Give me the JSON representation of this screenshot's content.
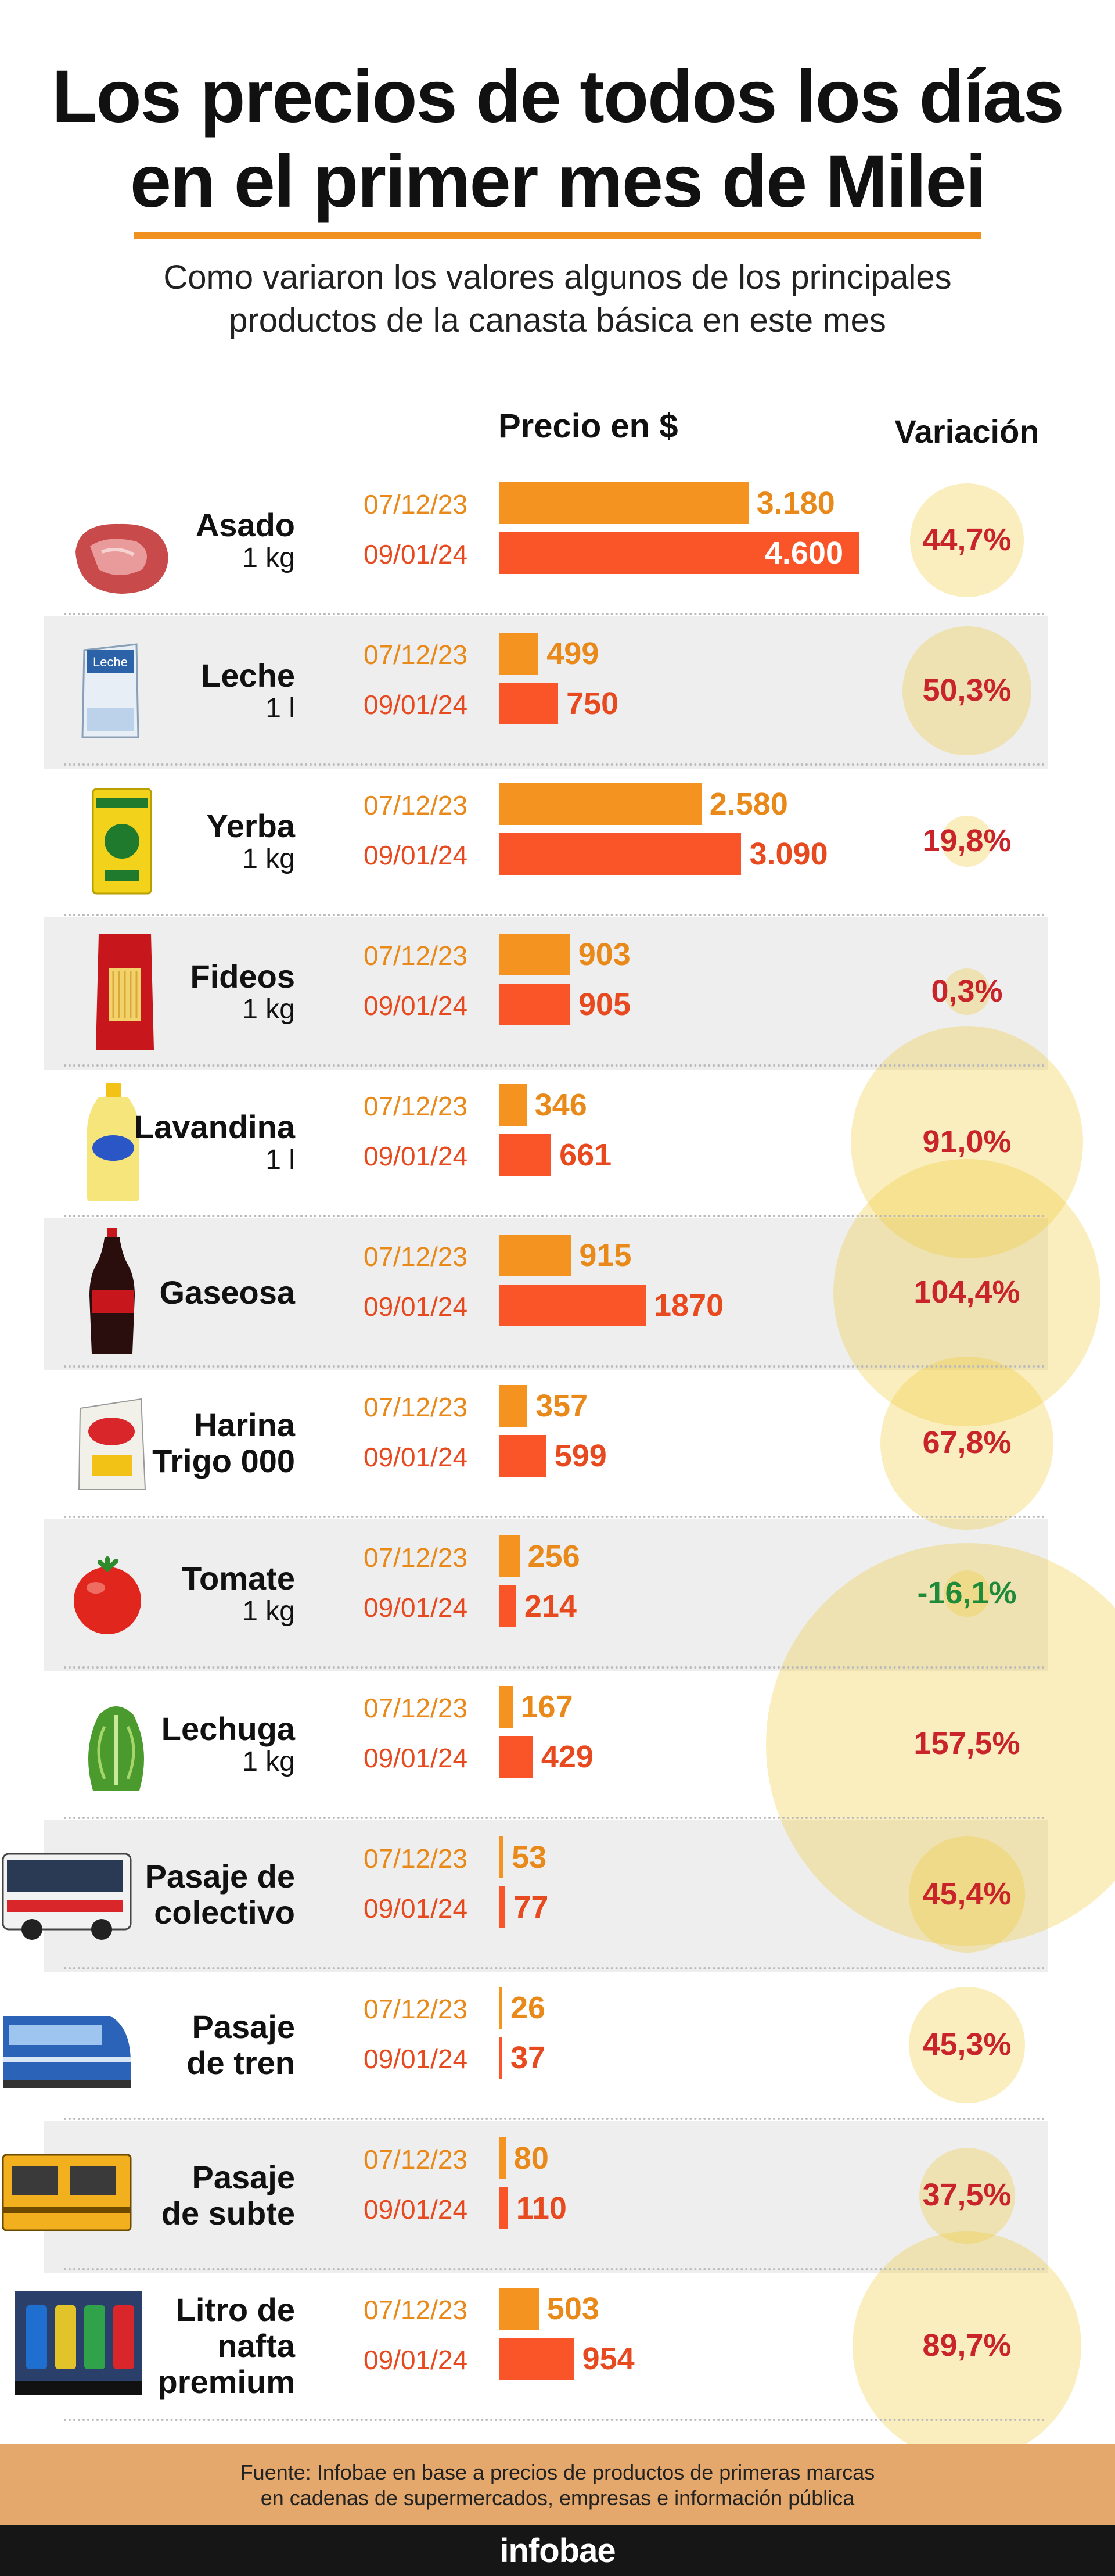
{
  "header": {
    "title_line1": "Los precios de todos los días",
    "title_line2": "en el primer mes de Milei",
    "subtitle_line1": "Como variaron los valores algunos de los principales",
    "subtitle_line2": "productos de la canasta básica en este mes"
  },
  "colors": {
    "bar_before": "#f59320",
    "bar_after": "#fa5528",
    "variation_positive": "#c8242a",
    "variation_negative": "#1f8a3a",
    "bubble": "#f0c828"
  },
  "chart_data": {
    "type": "bar",
    "title": "Los precios de todos los días en el primer mes de Milei",
    "price_header": "Precio en $",
    "variation_header": "Variación",
    "bar_unit_max": 4600,
    "series_names": [
      "07/12/23",
      "09/01/24"
    ],
    "items": [
      {
        "name": "Asado",
        "unit": "1 kg",
        "icon": "asado-icon",
        "date_a": "07/12/23",
        "date_b": "09/01/24",
        "value_a": 3180,
        "value_b": 4600,
        "label_a": "3.180",
        "label_b": "4.600",
        "variation": "44,7%",
        "variation_value": 44.7
      },
      {
        "name": "Leche",
        "unit": "1 l",
        "icon": "leche-icon",
        "date_a": "07/12/23",
        "date_b": "09/01/24",
        "value_a": 499,
        "value_b": 750,
        "label_a": "499",
        "label_b": "750",
        "variation": "50,3%",
        "variation_value": 50.3
      },
      {
        "name": "Yerba",
        "unit": "1 kg",
        "icon": "yerba-icon",
        "date_a": "07/12/23",
        "date_b": "09/01/24",
        "value_a": 2580,
        "value_b": 3090,
        "label_a": "2.580",
        "label_b": "3.090",
        "variation": "19,8%",
        "variation_value": 19.8
      },
      {
        "name": "Fideos",
        "unit": "1 kg",
        "icon": "fideos-icon",
        "date_a": "07/12/23",
        "date_b": "09/01/24",
        "value_a": 903,
        "value_b": 905,
        "label_a": "903",
        "label_b": "905",
        "variation": "0,3%",
        "variation_value": 0.3
      },
      {
        "name": "Lavandina",
        "unit": "1 l",
        "icon": "lavandina-icon",
        "date_a": "07/12/23",
        "date_b": "09/01/24",
        "value_a": 346,
        "value_b": 661,
        "label_a": "346",
        "label_b": "661",
        "variation": "91,0%",
        "variation_value": 91.0
      },
      {
        "name": "Gaseosa",
        "unit": "",
        "icon": "gaseosa-icon",
        "date_a": "07/12/23",
        "date_b": "09/01/24",
        "value_a": 915,
        "value_b": 1870,
        "label_a": "915",
        "label_b": "1870",
        "variation": "104,4%",
        "variation_value": 104.4
      },
      {
        "name": "Harina Trigo 000",
        "name_line1": "Harina",
        "name_line2": "Trigo 000",
        "unit": "",
        "icon": "harina-icon",
        "date_a": "07/12/23",
        "date_b": "09/01/24",
        "value_a": 357,
        "value_b": 599,
        "label_a": "357",
        "label_b": "599",
        "variation": "67,8%",
        "variation_value": 67.8
      },
      {
        "name": "Tomate",
        "unit": "1 kg",
        "icon": "tomate-icon",
        "date_a": "07/12/23",
        "date_b": "09/01/24",
        "value_a": 256,
        "value_b": 214,
        "label_a": "256",
        "label_b": "214",
        "variation": "-16,1%",
        "variation_value": -16.1
      },
      {
        "name": "Lechuga",
        "unit": "1 kg",
        "icon": "lechuga-icon",
        "date_a": "07/12/23",
        "date_b": "09/01/24",
        "value_a": 167,
        "value_b": 429,
        "label_a": "167",
        "label_b": "429",
        "variation": "157,5%",
        "variation_value": 157.5
      },
      {
        "name": "Pasaje de colectivo",
        "name_line1": "Pasaje de",
        "name_line2": "colectivo",
        "unit": "",
        "icon": "colectivo-icon",
        "date_a": "07/12/23",
        "date_b": "09/01/24",
        "value_a": 53,
        "value_b": 77,
        "label_a": "53",
        "label_b": "77",
        "variation": "45,4%",
        "variation_value": 45.4
      },
      {
        "name": "Pasaje de tren",
        "name_line1": "Pasaje",
        "name_line2": "de tren",
        "unit": "",
        "icon": "tren-icon",
        "date_a": "07/12/23",
        "date_b": "09/01/24",
        "value_a": 26,
        "value_b": 37,
        "label_a": "26",
        "label_b": "37",
        "variation": "45,3%",
        "variation_value": 45.3
      },
      {
        "name": "Pasaje de subte",
        "name_line1": "Pasaje",
        "name_line2": "de subte",
        "unit": "",
        "icon": "subte-icon",
        "date_a": "07/12/23",
        "date_b": "09/01/24",
        "value_a": 80,
        "value_b": 110,
        "label_a": "80",
        "label_b": "110",
        "variation": "37,5%",
        "variation_value": 37.5
      },
      {
        "name": "Litro de nafta premium",
        "name_line1": "Litro de",
        "name_line2": "nafta",
        "name_line3": "premium",
        "unit": "",
        "icon": "nafta-icon",
        "date_a": "07/12/23",
        "date_b": "09/01/24",
        "value_a": 503,
        "value_b": 954,
        "label_a": "503",
        "label_b": "954",
        "variation": "89,7%",
        "variation_value": 89.7
      }
    ]
  },
  "footer": {
    "source_line1": "Fuente: Infobae en base a precios de productos de primeras marcas",
    "source_line2": "en cadenas de supermercados, empresas e información pública",
    "brand": "infobae"
  }
}
